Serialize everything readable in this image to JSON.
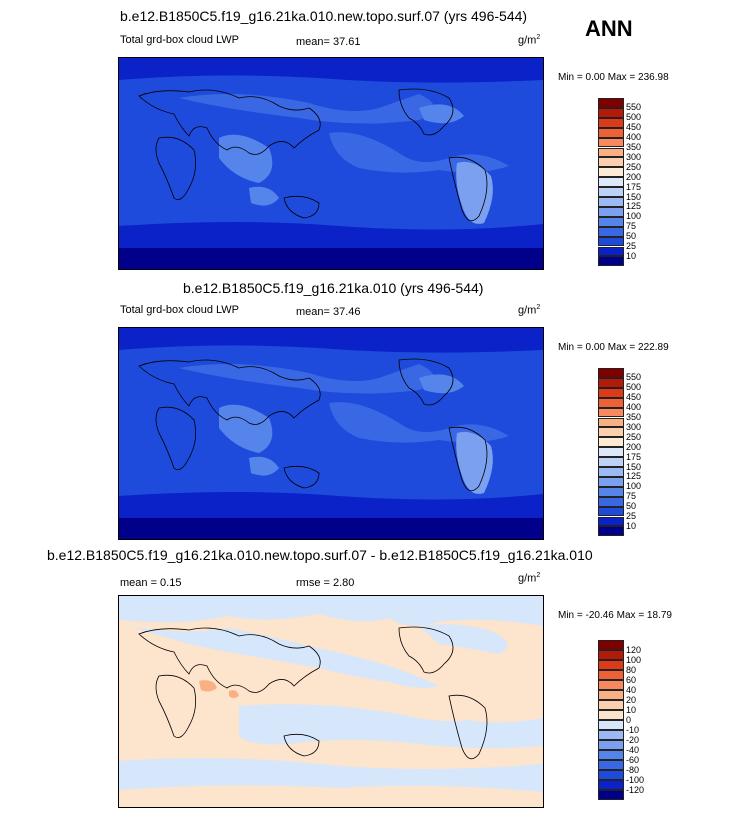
{
  "season": "ANN",
  "panels": [
    {
      "title": "b.e12.B1850C5.f19_g16.21ka.010.new.topo.surf.07 (yrs 496-544)",
      "variable": "Total grd-box cloud LWP",
      "stat_text": "mean=  37.61",
      "units": "g/m",
      "units_sup": "2",
      "minmax": "Min =   0.00 Max = 236.98"
    },
    {
      "title": "b.e12.B1850C5.f19_g16.21ka.010 (yrs 496-544)",
      "variable": "Total grd-box cloud LWP",
      "stat_text": "mean=  37.46",
      "units": "g/m",
      "units_sup": "2",
      "minmax": "Min =   0.00 Max = 222.89"
    },
    {
      "title": "b.e12.B1850C5.f19_g16.21ka.010.new.topo.surf.07 - b.e12.B1850C5.f19_g16.21ka.010",
      "stat_left": "mean =   0.15",
      "stat_right": "rmse =   2.80",
      "units": "g/m",
      "units_sup": "2",
      "minmax": "Min = -20.46 Max =  18.79"
    }
  ],
  "chart_data": [
    {
      "type": "heatmap",
      "title": "b.e12.B1850C5.f19_g16.21ka.010.new.topo.surf.07 (yrs 496-544)",
      "variable": "Total grd-box cloud LWP",
      "units": "g/m2",
      "mean": 37.61,
      "min": 0.0,
      "max": 236.98,
      "colorbar": {
        "levels": [
          "10",
          "25",
          "50",
          "75",
          "100",
          "125",
          "150",
          "175",
          "200",
          "250",
          "300",
          "350",
          "400",
          "450",
          "500",
          "550"
        ],
        "colors": [
          "#00008b",
          "#0a22c8",
          "#1f4bdc",
          "#3a68e4",
          "#5585ea",
          "#7aa0ef",
          "#9bbaf3",
          "#bcd3f7",
          "#dde9fb",
          "#fdebd6",
          "#fcd0ae",
          "#fbb083",
          "#f68a5e",
          "#ee6238",
          "#dd3a19",
          "#b31a0a",
          "#800000"
        ]
      }
    },
    {
      "type": "heatmap",
      "title": "b.e12.B1850C5.f19_g16.21ka.010 (yrs 496-544)",
      "variable": "Total grd-box cloud LWP",
      "units": "g/m2",
      "mean": 37.46,
      "min": 0.0,
      "max": 222.89,
      "colorbar": {
        "levels": [
          "10",
          "25",
          "50",
          "75",
          "100",
          "125",
          "150",
          "175",
          "200",
          "250",
          "300",
          "350",
          "400",
          "450",
          "500",
          "550"
        ],
        "colors": [
          "#00008b",
          "#0a22c8",
          "#1f4bdc",
          "#3a68e4",
          "#5585ea",
          "#7aa0ef",
          "#9bbaf3",
          "#bcd3f7",
          "#dde9fb",
          "#fdebd6",
          "#fcd0ae",
          "#fbb083",
          "#f68a5e",
          "#ee6238",
          "#dd3a19",
          "#b31a0a",
          "#800000"
        ]
      }
    },
    {
      "type": "heatmap",
      "title": "b.e12.B1850C5.f19_g16.21ka.010.new.topo.surf.07 - b.e12.B1850C5.f19_g16.21ka.010",
      "units": "g/m2",
      "mean": 0.15,
      "rmse": 2.8,
      "min": -20.46,
      "max": 18.79,
      "colorbar": {
        "levels": [
          "-120",
          "-100",
          "-80",
          "-60",
          "-40",
          "-20",
          "-10",
          "0",
          "10",
          "20",
          "40",
          "60",
          "80",
          "100",
          "120"
        ],
        "colors": [
          "#00008b",
          "#0a22c8",
          "#1f4bdc",
          "#3a68e4",
          "#5585ea",
          "#7aa0ef",
          "#9bbaf3",
          "#d6e6fb",
          "#fde4cc",
          "#fcd0ae",
          "#fbb083",
          "#f68a5e",
          "#ee6238",
          "#dd3a19",
          "#b31a0a",
          "#800000"
        ]
      }
    }
  ]
}
